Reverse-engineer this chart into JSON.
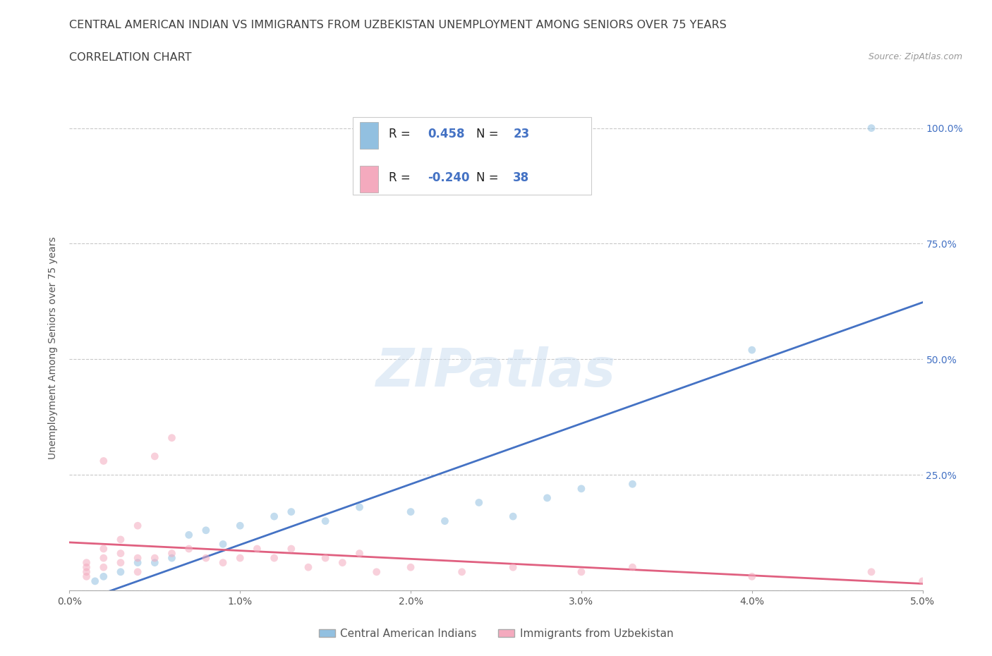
{
  "title_line1": "CENTRAL AMERICAN INDIAN VS IMMIGRANTS FROM UZBEKISTAN UNEMPLOYMENT AMONG SENIORS OVER 75 YEARS",
  "title_line2": "CORRELATION CHART",
  "source_text": "Source: ZipAtlas.com",
  "ylabel": "Unemployment Among Seniors over 75 years",
  "watermark": "ZIPatlas",
  "blue_R": 0.458,
  "blue_N": 23,
  "pink_R": -0.24,
  "pink_N": 38,
  "blue_color": "#92C0E0",
  "pink_color": "#F4AABE",
  "blue_line_color": "#4472C4",
  "pink_line_color": "#E06080",
  "legend_text_color": "#4472C4",
  "title_color": "#404040",
  "background_color": "#FFFFFF",
  "grid_color": "#C8C8C8",
  "xtick_labels": [
    "0.0%",
    "1.0%",
    "2.0%",
    "3.0%",
    "4.0%",
    "5.0%"
  ],
  "ytick_labels_right": [
    "",
    "25.0%",
    "50.0%",
    "75.0%",
    "100.0%"
  ],
  "ytick_positions": [
    0.0,
    0.25,
    0.5,
    0.75,
    1.0
  ],
  "blue_scatter_x": [
    0.0015,
    0.002,
    0.003,
    0.004,
    0.005,
    0.006,
    0.007,
    0.008,
    0.009,
    0.01,
    0.012,
    0.013,
    0.015,
    0.017,
    0.02,
    0.022,
    0.024,
    0.026,
    0.028,
    0.03,
    0.033,
    0.04,
    0.047
  ],
  "blue_scatter_y": [
    0.02,
    0.03,
    0.04,
    0.06,
    0.06,
    0.07,
    0.12,
    0.13,
    0.1,
    0.14,
    0.16,
    0.17,
    0.15,
    0.18,
    0.17,
    0.15,
    0.19,
    0.16,
    0.2,
    0.22,
    0.23,
    0.52,
    1.0
  ],
  "pink_scatter_x": [
    0.001,
    0.001,
    0.001,
    0.001,
    0.002,
    0.002,
    0.002,
    0.002,
    0.003,
    0.003,
    0.003,
    0.004,
    0.004,
    0.004,
    0.005,
    0.005,
    0.006,
    0.006,
    0.007,
    0.008,
    0.009,
    0.01,
    0.011,
    0.012,
    0.013,
    0.014,
    0.015,
    0.016,
    0.017,
    0.018,
    0.02,
    0.023,
    0.026,
    0.03,
    0.033,
    0.04,
    0.047,
    0.05
  ],
  "pink_scatter_y": [
    0.04,
    0.05,
    0.06,
    0.03,
    0.05,
    0.07,
    0.09,
    0.28,
    0.06,
    0.08,
    0.11,
    0.04,
    0.07,
    0.14,
    0.07,
    0.29,
    0.08,
    0.33,
    0.09,
    0.07,
    0.06,
    0.07,
    0.09,
    0.07,
    0.09,
    0.05,
    0.07,
    0.06,
    0.08,
    0.04,
    0.05,
    0.04,
    0.05,
    0.04,
    0.05,
    0.03,
    0.04,
    0.02
  ],
  "legend_label_blue": "Central American Indians",
  "legend_label_pink": "Immigrants from Uzbekistan",
  "marker_size": 60,
  "marker_alpha": 0.55,
  "title_fontsize": 11.5,
  "axis_label_fontsize": 10,
  "tick_fontsize": 10,
  "legend_fontsize": 12
}
